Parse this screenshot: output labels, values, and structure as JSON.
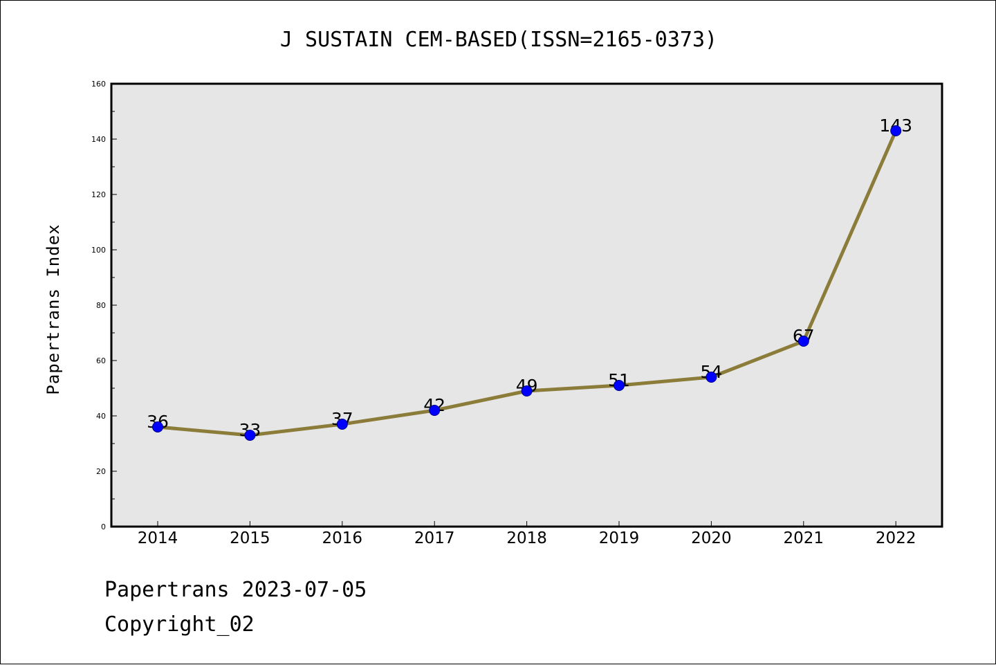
{
  "footer": {
    "line1": "Papertrans 2023-07-05",
    "line2": "Copyright_02"
  },
  "chart_data": {
    "type": "line",
    "title": "J SUSTAIN CEM-BASED(ISSN=2165-0373)",
    "xlabel": "",
    "ylabel": "Papertrans Index",
    "categories": [
      "2014",
      "2015",
      "2016",
      "2017",
      "2018",
      "2019",
      "2020",
      "2021",
      "2022"
    ],
    "values": [
      36,
      33,
      37,
      42,
      49,
      51,
      54,
      67,
      143
    ],
    "data_labels": [
      "36",
      "33",
      "37",
      "42",
      "49",
      "51",
      "54",
      "67",
      "143"
    ],
    "ylim": [
      0,
      160
    ],
    "yticks": [
      "0",
      "20",
      "40",
      "60",
      "80",
      "100",
      "120",
      "140",
      "160"
    ],
    "grid": false,
    "legend": "none",
    "colors": {
      "line": "#8c7c3a",
      "marker": "#0000ff",
      "plot_background": "#e6e6e6"
    }
  }
}
